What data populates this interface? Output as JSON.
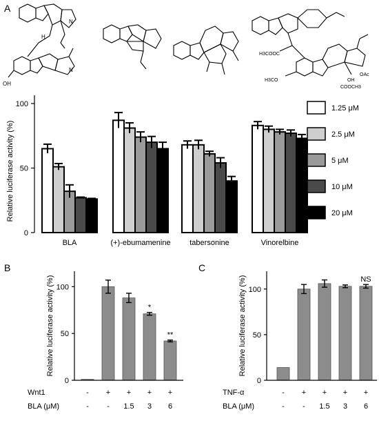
{
  "panels": {
    "a": "A",
    "b": "B",
    "c": "C"
  },
  "colors": {
    "c125": "#ffffff",
    "c25": "#cfcfcf",
    "c5": "#9a9a9a",
    "c10": "#4a4a4a",
    "c20": "#000000",
    "gray_bar": "#8c8c8c"
  },
  "structures": {
    "labels": {
      "oh": "OH",
      "h1": "H",
      "n1": "N",
      "n2": "N",
      "ester": "H3COOC",
      "methoxy_a": "H3CO",
      "methoxy_b": "OH",
      "oac": "OAc",
      "cooch3": "COOCH3",
      "ocmethyl": "COOCH3"
    }
  },
  "chart_data": [
    {
      "type": "bar",
      "ylabel": "Relative luciferase activity (%)",
      "yticks": [
        "100",
        "50",
        "0"
      ],
      "ylim": [
        0,
        110
      ],
      "categories": [
        "BLA",
        "(+)-ebumamenine",
        "tabersonine",
        "Vinorelbine"
      ],
      "series": [
        {
          "name": "1.25 μM",
          "color": "#ffffff",
          "values": [
            65,
            87,
            68,
            83
          ],
          "errors": [
            3.5,
            6,
            3,
            3
          ]
        },
        {
          "name": "2.5 μM",
          "color": "#cfcfcf",
          "values": [
            51,
            81,
            68,
            80
          ],
          "errors": [
            2.5,
            4,
            3.5,
            2.5
          ]
        },
        {
          "name": "5 μM",
          "color": "#9a9a9a",
          "values": [
            32,
            74,
            61,
            78
          ],
          "errors": [
            5,
            4,
            2,
            2
          ]
        },
        {
          "name": "10 μM",
          "color": "#4a4a4a",
          "values": [
            27,
            70,
            54,
            77
          ],
          "errors": [
            0.5,
            4.5,
            4,
            2.5
          ]
        },
        {
          "name": "20 μM",
          "color": "#000000",
          "values": [
            26,
            65,
            40,
            73
          ],
          "errors": [
            0.5,
            5,
            3.5,
            3
          ]
        }
      ],
      "legend": [
        "1.25 μM",
        "2.5 μM",
        "5 μM",
        "10 μM",
        "20 μM"
      ]
    },
    {
      "type": "bar",
      "ylabel": "Relative luciferase activity (%)",
      "yticks": [
        "0",
        "50",
        "100"
      ],
      "ylim": [
        0,
        115
      ],
      "values": [
        1,
        100,
        88,
        71,
        42
      ],
      "errors": [
        0,
        7,
        5,
        1.5,
        1
      ],
      "annotations": [
        "",
        "",
        "",
        "*",
        "**"
      ],
      "rows": [
        {
          "label": "Wnt1",
          "cells": [
            "-",
            "+",
            "+",
            "+",
            "+"
          ]
        },
        {
          "label": "BLA (μM)",
          "cells": [
            "-",
            "-",
            "1.5",
            "3",
            "6"
          ]
        }
      ]
    },
    {
      "type": "bar",
      "ylabel": "Relative luciferase activity (%)",
      "yticks": [
        "0",
        "50",
        "100"
      ],
      "ylim": [
        0,
        118
      ],
      "values": [
        14,
        100,
        106,
        103,
        103
      ],
      "errors": [
        0,
        5,
        4,
        1.5,
        2
      ],
      "annotations": [
        "",
        "",
        "",
        "",
        "NS"
      ],
      "rows": [
        {
          "label": "TNF-α",
          "cells": [
            "-",
            "+",
            "+",
            "+",
            "+"
          ]
        },
        {
          "label": "BLA (μM)",
          "cells": [
            "-",
            "-",
            "1.5",
            "3",
            "6"
          ]
        }
      ]
    }
  ]
}
